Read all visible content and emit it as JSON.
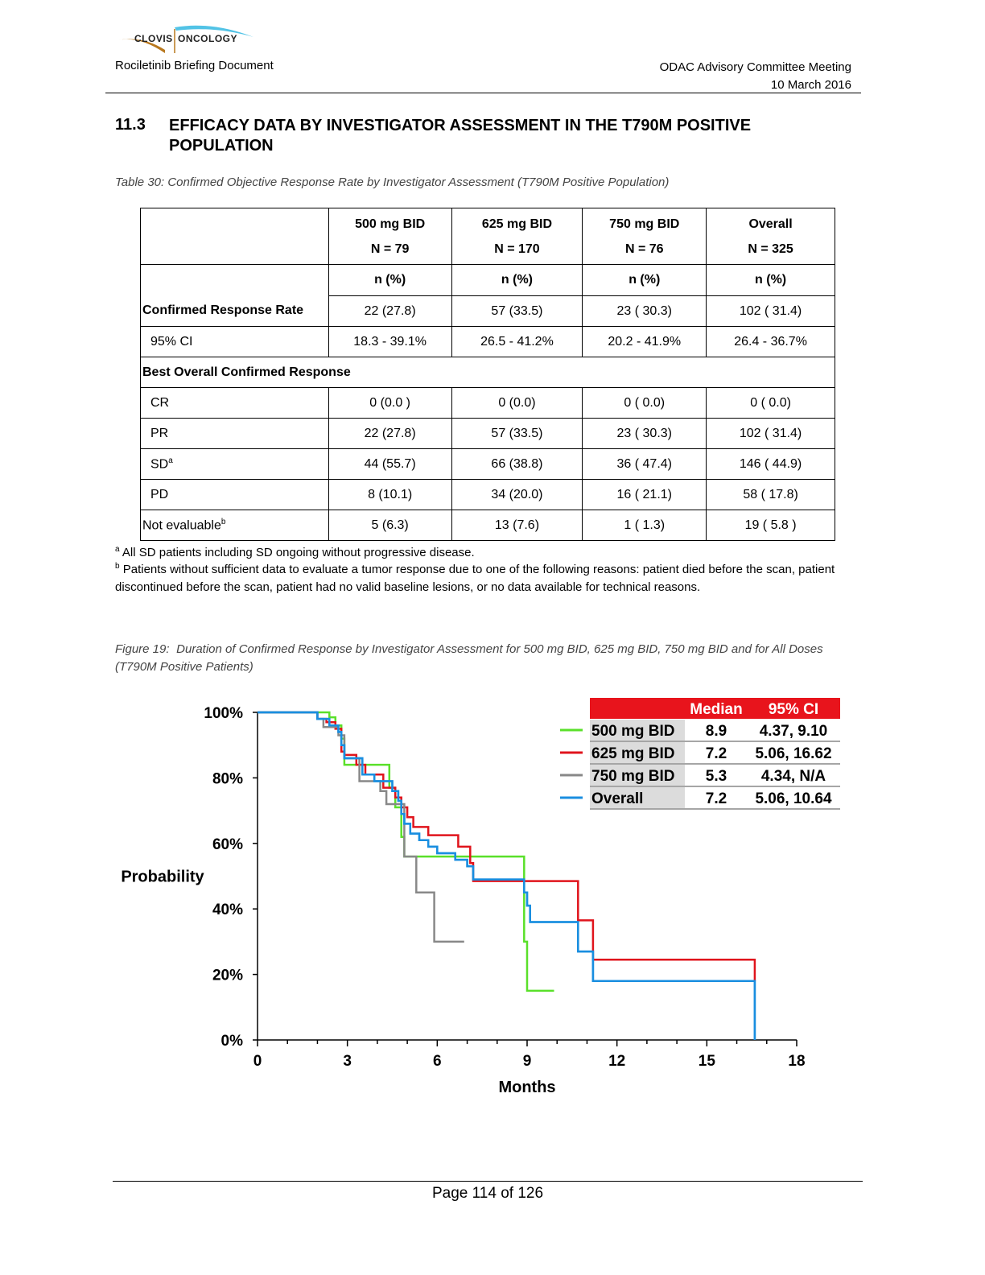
{
  "header": {
    "logo_left": "CLOVIS",
    "logo_right": "ONCOLOGY",
    "doc_title": "Rociletinib Briefing Document",
    "meeting": "ODAC Advisory Committee Meeting",
    "date": "10 March 2016"
  },
  "section": {
    "number": "11.3",
    "title": "EFFICACY DATA BY INVESTIGATOR ASSESSMENT IN THE T790M POSITIVE POPULATION"
  },
  "table": {
    "caption": "Table 30: Confirmed Objective Response Rate by Investigator Assessment (T790M Positive Population)",
    "columns": [
      {
        "dose": "500 mg BID",
        "n": "N = 79"
      },
      {
        "dose": "625 mg BID",
        "n": "N = 170"
      },
      {
        "dose": "750 mg BID",
        "n": "N = 76"
      },
      {
        "dose": "Overall",
        "n": "N = 325"
      }
    ],
    "unit": "n (%)",
    "crr_label": "Confirmed Response Rate",
    "crr": [
      "22 (27.8)",
      "57  (33.5)",
      "23  ( 30.3)",
      "102  ( 31.4)"
    ],
    "ci_label": "95% CI",
    "ci": [
      "18.3 - 39.1%",
      "26.5 - 41.2%",
      "20.2 - 41.9%",
      "26.4 - 36.7%"
    ],
    "bocr_label": "Best Overall Confirmed Response",
    "rows": [
      {
        "label": "CR",
        "sup": "",
        "values": [
          "0  (0.0 )",
          "0  (0.0)",
          "0  (  0.0)",
          "0  ( 0.0)"
        ]
      },
      {
        "label": "PR",
        "sup": "",
        "values": [
          "22 (27.8)",
          "57  (33.5)",
          "23  ( 30.3)",
          "102  ( 31.4)"
        ]
      },
      {
        "label": "SD",
        "sup": "a",
        "values": [
          "44 (55.7)",
          "66 (38.8)",
          "36  ( 47.4)",
          "146 ( 44.9)"
        ]
      },
      {
        "label": "PD",
        "sup": "",
        "values": [
          "8  (10.1)",
          "34  (20.0)",
          "16  ( 21.1)",
          "58  ( 17.8)"
        ]
      },
      {
        "label": "Not evaluable",
        "sup": "b",
        "values": [
          "5  (6.3)",
          "13 (7.6)",
          "1  (  1.3)",
          "19  (  5.8 )"
        ]
      }
    ]
  },
  "footnotes": {
    "a_mark": "a",
    "a": "All SD patients including SD ongoing without progressive disease.",
    "b_mark": "b",
    "b": "Patients without sufficient data to evaluate a tumor response due to one of the following reasons: patient died before the scan, patient discontinued before the scan, patient had no valid baseline lesions, or no data available for technical reasons."
  },
  "figure": {
    "label": "Figure 19:",
    "caption": "Duration of Confirmed Response by Investigator Assessment for 500 mg BID, 625 mg BID, 750 mg BID and for All Doses (T790M Positive Patients)"
  },
  "chart_data": {
    "type": "line",
    "step": true,
    "xlabel": "Months",
    "ylabel": "Probability",
    "xlim": [
      0,
      18
    ],
    "ylim": [
      0,
      100
    ],
    "xticks": [
      0,
      3,
      6,
      9,
      12,
      15,
      18
    ],
    "xtick_labels": [
      "0",
      "3",
      "6",
      "9",
      "12",
      "15",
      "18"
    ],
    "yticks": [
      0,
      20,
      40,
      60,
      80,
      100
    ],
    "ytick_labels": [
      "0%",
      "20%",
      "40%",
      "60%",
      "80%",
      "100%"
    ],
    "legend_position": "top-right",
    "legend_header": {
      "median": "Median",
      "ci": "95% CI"
    },
    "header_color": "#e8141c",
    "series": [
      {
        "name": "500 mg BID",
        "color": "#5ae02a",
        "median": "8.9",
        "ci": "4.37,  9.10",
        "points": [
          [
            0,
            100
          ],
          [
            2.4,
            100
          ],
          [
            2.4,
            98.5
          ],
          [
            2.6,
            98.5
          ],
          [
            2.6,
            96
          ],
          [
            2.8,
            96
          ],
          [
            2.8,
            92
          ],
          [
            2.9,
            92
          ],
          [
            2.9,
            84
          ],
          [
            3.7,
            84
          ],
          [
            3.7,
            84
          ],
          [
            4.4,
            84
          ],
          [
            4.4,
            77
          ],
          [
            4.6,
            77
          ],
          [
            4.6,
            71
          ],
          [
            4.8,
            71
          ],
          [
            4.8,
            62
          ],
          [
            4.9,
            62
          ],
          [
            4.9,
            56
          ],
          [
            8.9,
            56
          ],
          [
            8.9,
            30
          ],
          [
            9.0,
            30
          ],
          [
            9.0,
            15
          ],
          [
            9.9,
            15
          ]
        ]
      },
      {
        "name": "625 mg BID",
        "color": "#e0141c",
        "median": "7.2",
        "ci": "5.06,  16.62",
        "points": [
          [
            0,
            100
          ],
          [
            2.0,
            100
          ],
          [
            2.0,
            98
          ],
          [
            2.3,
            98
          ],
          [
            2.3,
            97
          ],
          [
            2.6,
            97
          ],
          [
            2.6,
            95
          ],
          [
            2.8,
            95
          ],
          [
            2.8,
            88
          ],
          [
            2.9,
            88
          ],
          [
            2.9,
            87
          ],
          [
            3.3,
            87
          ],
          [
            3.3,
            84
          ],
          [
            3.6,
            84
          ],
          [
            3.6,
            81
          ],
          [
            4.2,
            81
          ],
          [
            4.2,
            77
          ],
          [
            4.6,
            77
          ],
          [
            4.6,
            74
          ],
          [
            4.8,
            74
          ],
          [
            4.8,
            71
          ],
          [
            5.0,
            71
          ],
          [
            5.0,
            68
          ],
          [
            5.2,
            68
          ],
          [
            5.2,
            65
          ],
          [
            5.7,
            65
          ],
          [
            5.7,
            62.5
          ],
          [
            6.7,
            62.5
          ],
          [
            6.7,
            59
          ],
          [
            7.1,
            59
          ],
          [
            7.1,
            54
          ],
          [
            7.2,
            54
          ],
          [
            7.2,
            48.5
          ],
          [
            10.7,
            48.5
          ],
          [
            10.7,
            36.5
          ],
          [
            11.2,
            36.5
          ],
          [
            11.2,
            24.5
          ],
          [
            16.6,
            24.5
          ],
          [
            16.6,
            18
          ]
        ]
      },
      {
        "name": "750 mg BID",
        "color": "#888888",
        "median": "5.3",
        "ci": "4.34,  N/A",
        "points": [
          [
            0,
            100
          ],
          [
            2.0,
            100
          ],
          [
            2.0,
            98
          ],
          [
            2.2,
            98
          ],
          [
            2.2,
            95.5
          ],
          [
            2.7,
            95.5
          ],
          [
            2.7,
            93
          ],
          [
            2.9,
            93
          ],
          [
            2.9,
            86
          ],
          [
            3.4,
            86
          ],
          [
            3.4,
            82
          ],
          [
            3.4,
            82
          ],
          [
            3.4,
            79
          ],
          [
            4.1,
            79
          ],
          [
            4.1,
            76
          ],
          [
            4.3,
            76
          ],
          [
            4.3,
            72
          ],
          [
            4.9,
            72
          ],
          [
            4.9,
            56
          ],
          [
            5.3,
            56
          ],
          [
            5.3,
            45
          ],
          [
            5.9,
            45
          ],
          [
            5.9,
            30
          ],
          [
            6.9,
            30
          ]
        ]
      },
      {
        "name": "Overall",
        "color": "#1a8ee0",
        "median": "7.2",
        "ci": "5.06,  10.64",
        "points": [
          [
            0,
            100
          ],
          [
            2.0,
            100
          ],
          [
            2.0,
            98
          ],
          [
            2.4,
            98
          ],
          [
            2.4,
            96
          ],
          [
            2.7,
            96
          ],
          [
            2.7,
            94
          ],
          [
            2.8,
            94
          ],
          [
            2.8,
            90
          ],
          [
            2.9,
            90
          ],
          [
            2.9,
            86
          ],
          [
            3.5,
            86
          ],
          [
            3.5,
            81
          ],
          [
            3.9,
            81
          ],
          [
            3.9,
            79
          ],
          [
            4.5,
            79
          ],
          [
            4.5,
            76
          ],
          [
            4.7,
            76
          ],
          [
            4.7,
            73
          ],
          [
            4.8,
            73
          ],
          [
            4.8,
            69
          ],
          [
            4.9,
            69
          ],
          [
            4.9,
            66
          ],
          [
            5.1,
            66
          ],
          [
            5.1,
            63
          ],
          [
            5.4,
            63
          ],
          [
            5.4,
            61
          ],
          [
            5.7,
            61
          ],
          [
            5.7,
            59
          ],
          [
            6.0,
            59
          ],
          [
            6.0,
            57
          ],
          [
            6.6,
            57
          ],
          [
            6.6,
            55
          ],
          [
            7.0,
            55
          ],
          [
            7.0,
            53
          ],
          [
            7.2,
            53
          ],
          [
            7.2,
            49
          ],
          [
            8.9,
            49
          ],
          [
            8.9,
            45
          ],
          [
            9.0,
            45
          ],
          [
            9.0,
            41
          ],
          [
            9.1,
            41
          ],
          [
            9.1,
            36
          ],
          [
            10.7,
            36
          ],
          [
            10.7,
            27
          ],
          [
            11.2,
            27
          ],
          [
            11.2,
            18
          ],
          [
            16.6,
            18
          ],
          [
            16.6,
            0
          ]
        ]
      }
    ]
  },
  "footer": {
    "page": "Page 114 of 126"
  }
}
